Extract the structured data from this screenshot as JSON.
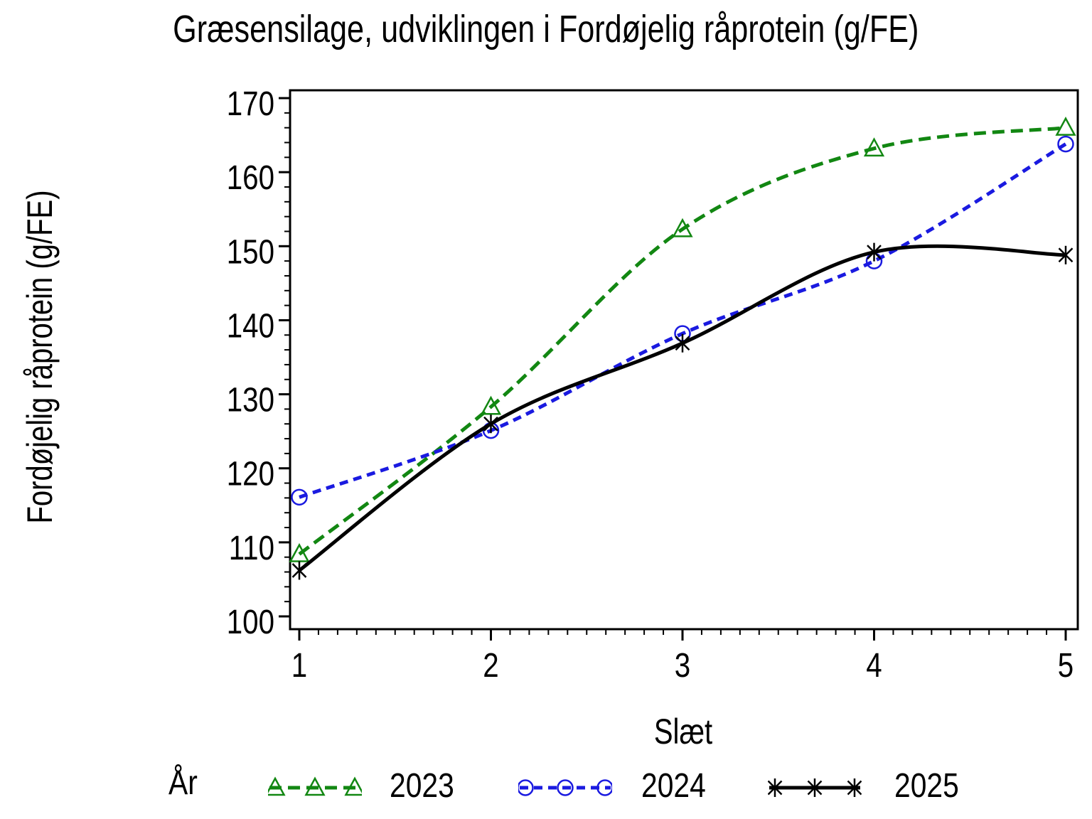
{
  "chart_data": {
    "type": "line",
    "title": "Græsensilage, udviklingen i Fordøjelig råprotein (g/FE)",
    "xlabel": "Slæt",
    "ylabel": "Fordøjelig råprotein (g/FE)",
    "legend_title": "År",
    "legend_position": "bottom",
    "grid": false,
    "axis_color": "#000000",
    "background_color": "#ffffff",
    "x": [
      1,
      2,
      3,
      4,
      5
    ],
    "xlim": [
      1,
      5
    ],
    "ylim": [
      100,
      170
    ],
    "xticks": [
      1,
      2,
      3,
      4,
      5
    ],
    "yticks": [
      100,
      110,
      120,
      130,
      140,
      150,
      160,
      170
    ],
    "x_minor_step": 0.1,
    "y_minor_step": 2,
    "series": [
      {
        "name": "2023",
        "color": "#128712",
        "marker": "triangle",
        "line_style": "dashed",
        "dash": [
          17,
          9
        ],
        "values": [
          108.4,
          128.3,
          152.3,
          163.2,
          166.0
        ]
      },
      {
        "name": "2024",
        "color": "#1a1ae0",
        "marker": "circle",
        "line_style": "dashed",
        "dash": [
          12,
          8
        ],
        "values": [
          116.1,
          125.1,
          138.2,
          148.0,
          163.8
        ]
      },
      {
        "name": "2025",
        "color": "#000000",
        "marker": "star",
        "line_style": "solid",
        "dash": null,
        "values": [
          106.2,
          126.0,
          136.9,
          149.2,
          148.8
        ]
      }
    ]
  }
}
